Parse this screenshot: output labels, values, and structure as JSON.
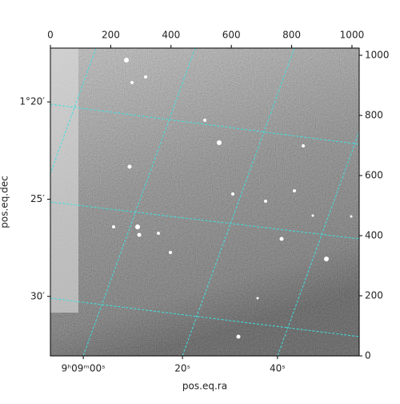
{
  "chart_data": {
    "type": "image",
    "x_label": "pos.eq.ra",
    "y_label": "pos.eq.dec",
    "xlim": [
      0,
      1024
    ],
    "ylim": [
      0,
      1024
    ],
    "xticks": [
      0,
      200,
      400,
      600,
      800,
      1000
    ],
    "yticks": [
      0,
      200,
      400,
      600,
      800,
      1000
    ],
    "ra_ticks": [
      {
        "value": 109,
        "label": "9ʰ09ᵐ00ˢ"
      },
      {
        "value": 438,
        "label": "20ˢ"
      },
      {
        "value": 753,
        "label": "40ˢ"
      }
    ],
    "dec_ticks": [
      {
        "value": 845,
        "label": "1°20′"
      },
      {
        "value": 521,
        "label": "25′"
      },
      {
        "value": 198,
        "label": "30′"
      }
    ],
    "grid_color": "#40e0e0"
  }
}
